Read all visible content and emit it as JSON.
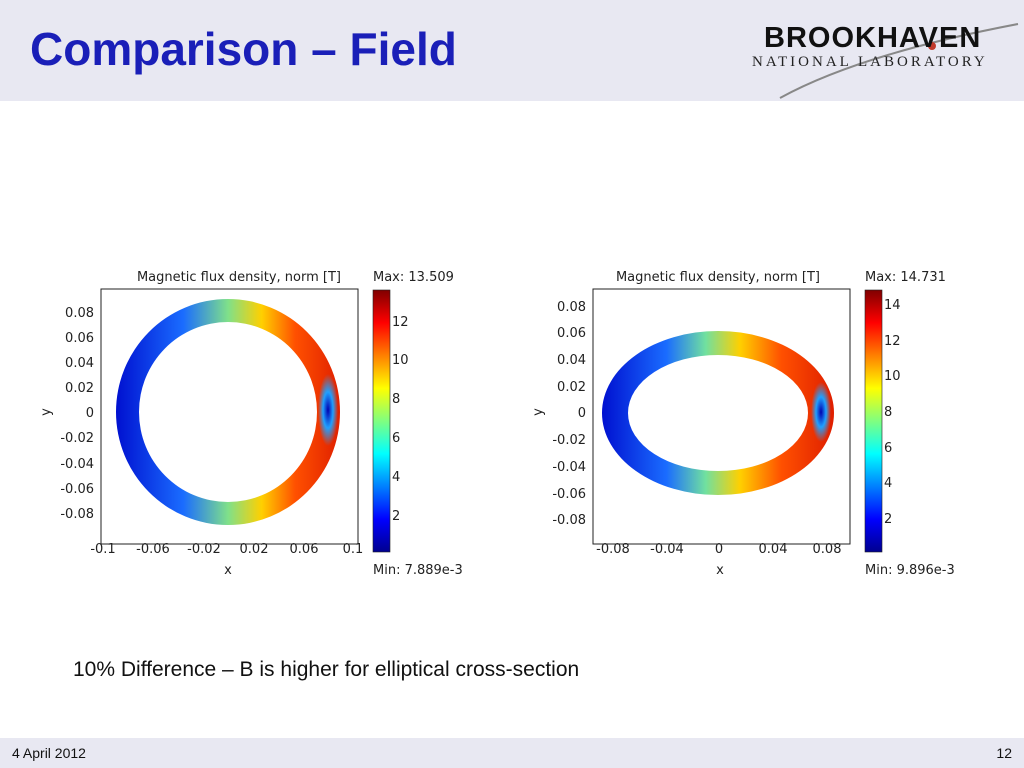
{
  "slide": {
    "title": "Comparison – Field",
    "caption": "10% Difference – B is higher for elliptical cross-section",
    "footer": {
      "date": "4 April 2012",
      "page": "12"
    }
  },
  "logo": {
    "main": "BROOKHAVEN",
    "sub": "NATIONAL LABORATORY"
  },
  "colors": {
    "title": "#1a1fb8",
    "band": "#e8e8f2"
  },
  "chart_data": [
    {
      "type": "heatmap",
      "title": "Magnetic flux density, norm [T]",
      "xlabel": "x",
      "ylabel": "y",
      "max_label": "Max: 13.509",
      "min_label": "Min: 7.889e-3",
      "x_ticks": [
        "-0.1",
        "-0.06",
        "-0.02",
        "0.02",
        "0.06",
        "0.1"
      ],
      "y_ticks": [
        "0.08",
        "0.06",
        "0.04",
        "0.02",
        "0",
        "-0.02",
        "-0.04",
        "-0.06",
        "-0.08"
      ],
      "colorbar_ticks": [
        "12",
        "10",
        "8",
        "6",
        "4",
        "2"
      ],
      "colorbar_range": [
        0.007889,
        13.509
      ],
      "shape": "circular-ring"
    },
    {
      "type": "heatmap",
      "title": "Magnetic flux density, norm [T]",
      "xlabel": "x",
      "ylabel": "y",
      "max_label": "Max: 14.731",
      "min_label": "Min: 9.896e-3",
      "x_ticks": [
        "-0.08",
        "-0.04",
        "0",
        "0.04",
        "0.08"
      ],
      "y_ticks": [
        "0.08",
        "0.06",
        "0.04",
        "0.02",
        "0",
        "-0.02",
        "-0.04",
        "-0.06",
        "-0.08"
      ],
      "colorbar_ticks": [
        "14",
        "12",
        "10",
        "8",
        "6",
        "4",
        "2"
      ],
      "colorbar_range": [
        0.009896,
        14.731
      ],
      "shape": "elliptical-ring"
    }
  ]
}
